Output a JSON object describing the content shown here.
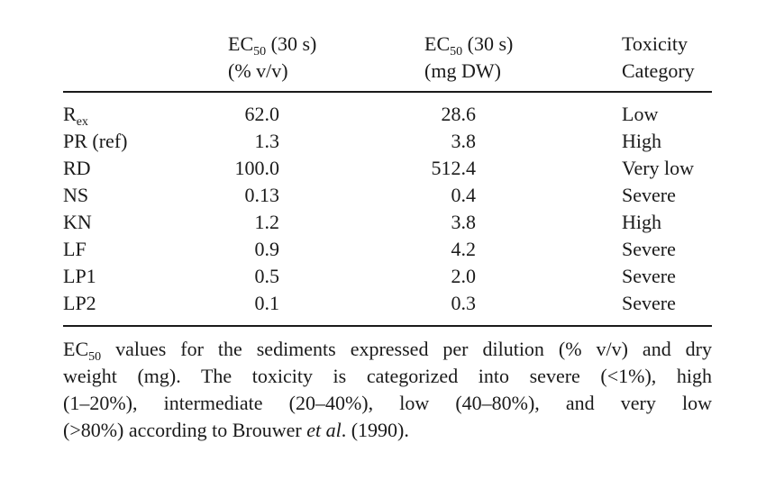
{
  "header": {
    "col1_line1_main": "EC",
    "col1_line1_sub": "50",
    "col1_line1_rest": " (30 s)",
    "col1_line2": "(% v/v)",
    "col2_line1_main": "EC",
    "col2_line1_sub": "50",
    "col2_line1_rest": " (30 s)",
    "col2_line2": "(mg DW)",
    "col3_line1": "Toxicity",
    "col3_line2": "Category"
  },
  "rows": [
    {
      "label_main": "R",
      "label_sub": "ex",
      "pct": "62.0",
      "mg": "28.6",
      "category": "Low"
    },
    {
      "label_main": "PR (ref)",
      "label_sub": "",
      "pct": "1.3",
      "mg": "3.8",
      "category": "High"
    },
    {
      "label_main": "RD",
      "label_sub": "",
      "pct": "100.0",
      "mg": "512.4",
      "category": "Very low"
    },
    {
      "label_main": "NS",
      "label_sub": "",
      "pct": "0.13",
      "mg": "0.4",
      "category": "Severe"
    },
    {
      "label_main": "KN",
      "label_sub": "",
      "pct": "1.2",
      "mg": "3.8",
      "category": "High"
    },
    {
      "label_main": "LF",
      "label_sub": "",
      "pct": "0.9",
      "mg": "4.2",
      "category": "Severe"
    },
    {
      "label_main": "LP1",
      "label_sub": "",
      "pct": "0.5",
      "mg": "2.0",
      "category": "Severe"
    },
    {
      "label_main": "LP2",
      "label_sub": "",
      "pct": "0.1",
      "mg": "0.3",
      "category": "Severe"
    }
  ],
  "footnote": {
    "line1_a": "EC",
    "line1_sub": "50",
    "line1_b": " values for the sediments expressed per dilution (% v/v) and dry",
    "line2": "weight (mg). The toxicity is categorized into severe (<1%), high",
    "line3": "(1–20%), intermediate (20–40%), low (40–80%), and very low",
    "line4_a": "(>80%) according to Brouwer ",
    "line4_italic": "et al",
    "line4_b": ". (1990)."
  }
}
